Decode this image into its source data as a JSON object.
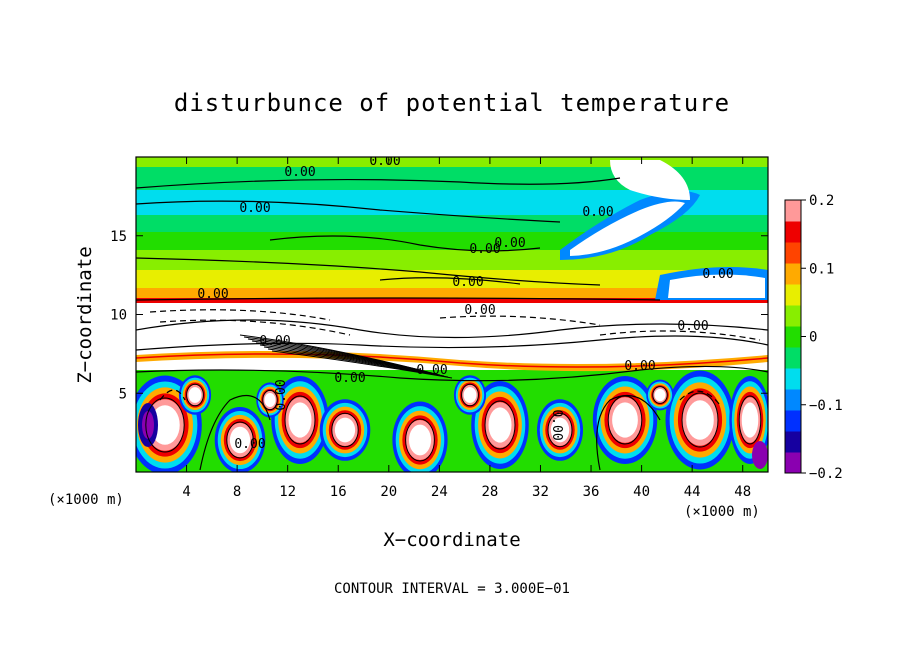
{
  "chart_data": {
    "type": "heatmap",
    "title": "disturbunce of potential temperature",
    "xlabel": "X−coordinate",
    "ylabel": "Z−coordinate",
    "x_unit": "(×1000 m)",
    "z_unit": "(×1000 m)",
    "x_ticks": [
      4,
      8,
      12,
      16,
      20,
      24,
      28,
      32,
      36,
      40,
      44,
      48
    ],
    "z_ticks": [
      5,
      10,
      15
    ],
    "xlim": [
      0,
      50
    ],
    "zlim": [
      0,
      20
    ],
    "colorbar": {
      "ticks": [
        0.2,
        0.1,
        0,
        -0.1,
        -0.2
      ],
      "tick_labels": [
        "0.2",
        "0.1",
        "0",
        "−0.1",
        "−0.2"
      ],
      "range": [
        -0.2,
        0.2
      ],
      "colors": [
        "#8a00b0",
        "#1600a0",
        "#0030ff",
        "#0088ff",
        "#00ddee",
        "#00dd66",
        "#22dd00",
        "#88ee00",
        "#e8ee00",
        "#ffaa00",
        "#ff4400",
        "#ee0000",
        "#ff9999"
      ]
    },
    "contour_labels": [
      "0.00",
      "0.00",
      "0.00",
      "0.00",
      "0.00",
      "0.00",
      "0.00",
      "0.00",
      "0.00",
      "0.00",
      "0.00",
      "0.00",
      "0.00",
      "0.00",
      "0.00",
      "0.00"
    ],
    "footnote": "CONTOUR INTERVAL = 3.000E−01",
    "grid": false
  }
}
